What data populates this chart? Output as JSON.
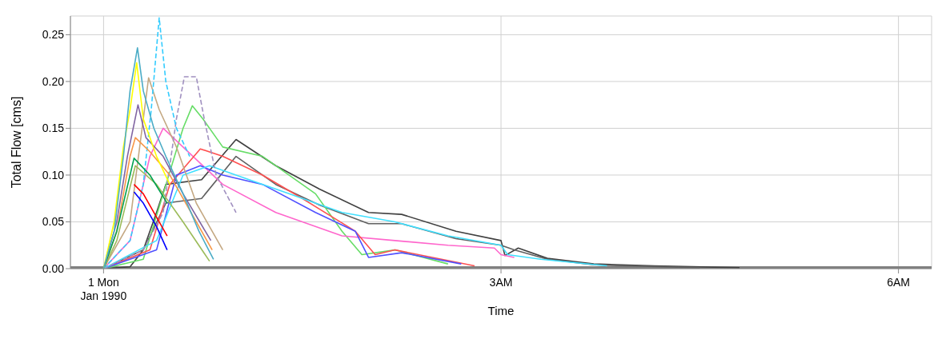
{
  "chart_data": {
    "type": "line",
    "xlabel": "Time",
    "ylabel": "Total Flow [cms]",
    "grid": true,
    "xlim": [
      -0.25,
      6.25
    ],
    "xticks": [
      {
        "value": 0,
        "label": "1 Mon\nJan 1990"
      },
      {
        "value": 3,
        "label": "3AM"
      },
      {
        "value": 6,
        "label": "6AM"
      }
    ],
    "ylim": [
      0,
      0.27
    ],
    "yticks": [
      {
        "value": 0,
        "label": "0.00"
      },
      {
        "value": 0.05,
        "label": "0.05"
      },
      {
        "value": 0.1,
        "label": "0.10"
      },
      {
        "value": 0.15,
        "label": "0.15"
      },
      {
        "value": 0.2,
        "label": "0.20"
      },
      {
        "value": 0.25,
        "label": "0.25"
      }
    ],
    "series": [
      {
        "color": "#808080",
        "x": [
          -0.25,
          6.25
        ],
        "values": [
          0,
          0
        ]
      },
      {
        "color": "#404040",
        "x": [
          0,
          0.2,
          0.3,
          0.4,
          0.47,
          0.74,
          1.0,
          1.3,
          1.63,
          2.0,
          2.25,
          2.66,
          3.0,
          3.03,
          3.13,
          3.35,
          3.7,
          4.16,
          4.8
        ],
        "values": [
          0,
          0.002,
          0.02,
          0.06,
          0.09,
          0.095,
          0.138,
          0.11,
          0.085,
          0.06,
          0.058,
          0.04,
          0.03,
          0.014,
          0.022,
          0.011,
          0.005,
          0.003,
          0.001
        ]
      },
      {
        "color": "#606060",
        "x": [
          0,
          0.3,
          0.47,
          0.74,
          1.0,
          1.3,
          1.63,
          2.0,
          2.25,
          2.66,
          3.0,
          3.1,
          3.35,
          3.7,
          4.5
        ],
        "values": [
          0,
          0.02,
          0.07,
          0.075,
          0.12,
          0.09,
          0.068,
          0.048,
          0.048,
          0.032,
          0.025,
          0.02,
          0.01,
          0.004,
          0.001
        ]
      },
      {
        "color": "#66dd66",
        "x": [
          0,
          0.3,
          0.45,
          0.6,
          0.67,
          0.75,
          0.9,
          1.2,
          1.6,
          1.8,
          1.95,
          2.2,
          2.6
        ],
        "values": [
          0,
          0.01,
          0.08,
          0.15,
          0.174,
          0.16,
          0.13,
          0.12,
          0.08,
          0.04,
          0.015,
          0.02,
          0.005
        ]
      },
      {
        "color": "#ff66cc",
        "x": [
          0,
          0.2,
          0.35,
          0.45,
          0.6,
          0.9,
          1.3,
          1.8,
          2.2,
          2.6,
          2.95,
          3.0,
          3.1
        ],
        "values": [
          0,
          0.03,
          0.12,
          0.15,
          0.13,
          0.09,
          0.06,
          0.035,
          0.03,
          0.025,
          0.022,
          0.015,
          0.012
        ]
      },
      {
        "color": "#ff5050",
        "x": [
          0,
          0.35,
          0.5,
          0.73,
          0.9,
          1.2,
          1.5,
          1.9,
          2.05,
          2.2,
          2.8
        ],
        "values": [
          0,
          0.02,
          0.09,
          0.128,
          0.12,
          0.1,
          0.075,
          0.04,
          0.015,
          0.02,
          0.003
        ]
      },
      {
        "color": "#5050ff",
        "x": [
          0,
          0.4,
          0.55,
          0.73,
          0.9,
          1.2,
          1.6,
          1.9,
          2.0,
          2.25,
          2.7
        ],
        "values": [
          0,
          0.02,
          0.1,
          0.11,
          0.1,
          0.09,
          0.06,
          0.04,
          0.012,
          0.017,
          0.005
        ]
      },
      {
        "color": "#40e0ff",
        "x": [
          0,
          0.4,
          0.6,
          0.8,
          1.0,
          1.4,
          1.8,
          2.2,
          2.6,
          3.0,
          3.05,
          3.3,
          3.8
        ],
        "values": [
          0,
          0.03,
          0.1,
          0.11,
          0.1,
          0.08,
          0.06,
          0.05,
          0.035,
          0.025,
          0.015,
          0.01,
          0.003
        ]
      },
      {
        "color": "#c4a882",
        "x": [
          0,
          0.2,
          0.34,
          0.42,
          0.55,
          0.7,
          0.9
        ],
        "values": [
          0,
          0.05,
          0.204,
          0.17,
          0.13,
          0.07,
          0.02
        ]
      },
      {
        "color": "#a090c0",
        "line_style": "dashed",
        "x": [
          0,
          0.3,
          0.45,
          0.55,
          0.61,
          0.7,
          0.76,
          0.85,
          1.0
        ],
        "values": [
          0,
          0.02,
          0.06,
          0.16,
          0.205,
          0.205,
          0.16,
          0.1,
          0.06
        ]
      },
      {
        "color": "#33ccff",
        "line_style": "dashed",
        "x": [
          0,
          0.2,
          0.3,
          0.36,
          0.42,
          0.47,
          0.55,
          0.65
        ],
        "values": [
          0,
          0.03,
          0.09,
          0.17,
          0.268,
          0.2,
          0.15,
          0.12
        ]
      },
      {
        "color": "#9bbb59",
        "x": [
          0,
          0.1,
          0.24,
          0.4,
          0.6,
          0.8
        ],
        "values": [
          0,
          0.03,
          0.11,
          0.09,
          0.05,
          0.008
        ]
      },
      {
        "color": "#f79646",
        "x": [
          0,
          0.1,
          0.2,
          0.24,
          0.35,
          0.5,
          0.7,
          0.82
        ],
        "values": [
          0,
          0.04,
          0.12,
          0.14,
          0.125,
          0.1,
          0.05,
          0.02
        ]
      },
      {
        "color": "#00a050",
        "x": [
          0,
          0.1,
          0.23,
          0.35,
          0.48
        ],
        "values": [
          0,
          0.04,
          0.118,
          0.1,
          0.07
        ]
      },
      {
        "color": "#ff0000",
        "x": [
          0.23,
          0.3,
          0.4,
          0.48
        ],
        "values": [
          0.09,
          0.08,
          0.055,
          0.035
        ]
      },
      {
        "color": "#0000ff",
        "x": [
          0.23,
          0.3,
          0.4,
          0.48
        ],
        "values": [
          0.082,
          0.07,
          0.045,
          0.02
        ]
      },
      {
        "color": "#8064a2",
        "x": [
          0,
          0.1,
          0.18,
          0.26,
          0.32,
          0.45,
          0.6,
          0.81
        ],
        "values": [
          0,
          0.05,
          0.12,
          0.175,
          0.14,
          0.12,
          0.08,
          0.03
        ]
      },
      {
        "color": "#ffff00",
        "x": [
          0,
          0.08,
          0.15,
          0.2,
          0.25,
          0.3,
          0.4,
          0.5
        ],
        "values": [
          0,
          0.05,
          0.13,
          0.17,
          0.22,
          0.16,
          0.12,
          0.09
        ]
      },
      {
        "color": "#4bacc6",
        "x": [
          0,
          0.08,
          0.15,
          0.2,
          0.256,
          0.3,
          0.38,
          0.47,
          0.6,
          0.72,
          0.83
        ],
        "values": [
          0,
          0.04,
          0.12,
          0.19,
          0.236,
          0.19,
          0.15,
          0.12,
          0.08,
          0.04,
          0.01
        ]
      }
    ]
  }
}
